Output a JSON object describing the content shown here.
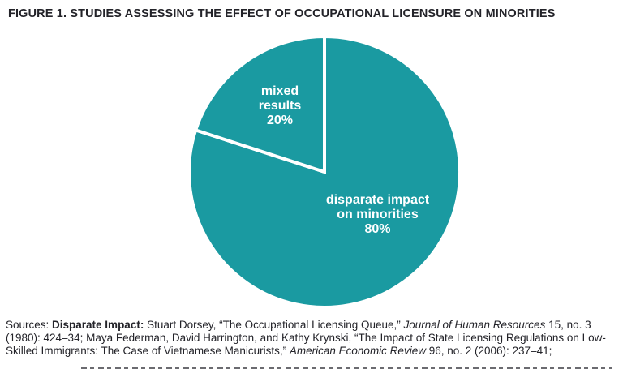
{
  "title": "FIGURE 1. STUDIES ASSESSING THE EFFECT OF OCCUPATIONAL LICENSURE ON MINORITIES",
  "colors": {
    "pie": "#1A9AA1",
    "divider": "#FFFFFF",
    "text_dark": "#232329",
    "slice_label_text": "#FFFFFF",
    "background": "#FFFFFF"
  },
  "chart_data": {
    "type": "pie",
    "title": "FIGURE 1. STUDIES ASSESSING THE EFFECT OF OCCUPATIONAL LICENSURE ON MINORITIES",
    "unit": "percent",
    "start_angle_deg": 90,
    "direction": "clockwise",
    "color": "#1A9AA1",
    "divider_color": "#FFFFFF",
    "legend_position": "labels inside slices",
    "slices": [
      {
        "label": "disparate impact on minorities",
        "value": 80,
        "display": "80%"
      },
      {
        "label": "mixed results",
        "value": 20,
        "display": "20%"
      }
    ]
  },
  "sources": {
    "segments": [
      {
        "text": "Sources: "
      },
      {
        "text": "Disparate Impact: "
      },
      {
        "text": "Stuart Dorsey, “The Occupational Licensing Queue,” "
      },
      {
        "text": "Journal of Human Resources"
      },
      {
        "text": " 15, no. 3 (1980): 424–34; Maya Federman, David Harrington, and Kathy Krynski, “The Impact of State Licensing Regulations on Low-Skilled Immigrants: The Case of Vietnamese Manicurists,” "
      },
      {
        "text": "American Economic Review"
      },
      {
        "text": " 96, no. 2 (2006): 237–41;"
      }
    ]
  }
}
